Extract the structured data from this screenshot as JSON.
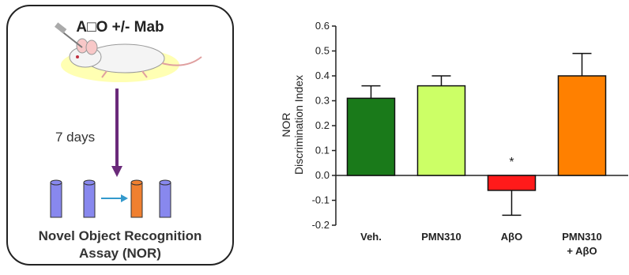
{
  "schematic": {
    "title": "A□O +/- Mab",
    "interval": "7 days",
    "assay_line1": "Novel Object Recognition",
    "assay_line2": "Assay (NOR)",
    "object_colors": [
      "#8888ee",
      "#8888ee",
      "#f08030",
      "#8888ee"
    ],
    "arrow_color": "#6a2a7a",
    "icons": [
      "mouse-injection-icon",
      "down-arrow-icon",
      "cylinder-object-icon",
      "right-arrow-icon"
    ]
  },
  "chart_data": {
    "type": "bar",
    "categories": [
      "Veh.",
      "PMN310",
      "AβO",
      "PMN310 + AβO"
    ],
    "category_lines": [
      [
        "Veh."
      ],
      [
        "PMN310"
      ],
      [
        "AβO"
      ],
      [
        "PMN310",
        "+ AβO"
      ]
    ],
    "values": [
      0.31,
      0.36,
      -0.06,
      0.4
    ],
    "errors": [
      0.05,
      0.04,
      0.1,
      0.09
    ],
    "error_direction": [
      "up",
      "up",
      "down",
      "up"
    ],
    "colors": [
      "#1a7a1a",
      "#ccff66",
      "#ff1a1a",
      "#ff8000"
    ],
    "ylabel_line1": "NOR",
    "ylabel_line2": "Discrimination Index",
    "ylim": [
      -0.2,
      0.6
    ],
    "yticks": [
      -0.2,
      -0.1,
      0.0,
      0.1,
      0.2,
      0.3,
      0.4,
      0.5,
      0.6
    ],
    "ytick_labels": [
      "-0.2",
      "-0.1",
      "0.0",
      "0.1",
      "0.2",
      "0.3",
      "0.4",
      "0.5",
      "0.6"
    ],
    "annotations": [
      {
        "category": "AβO",
        "text": "*"
      }
    ],
    "grid": false
  }
}
